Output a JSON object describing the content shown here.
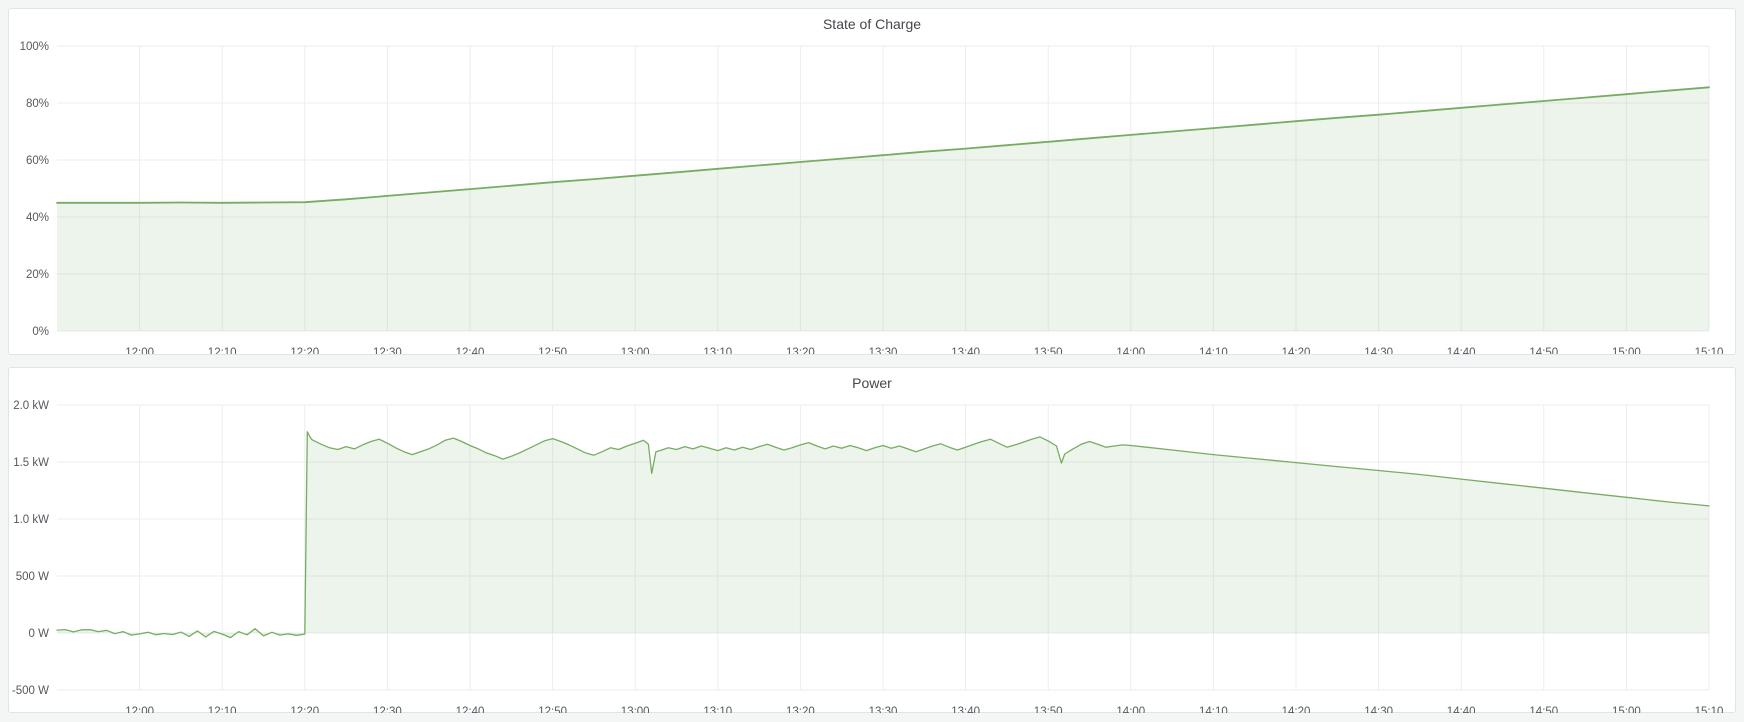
{
  "page": {
    "background_color": "#f4f5f5",
    "panel_background": "#ffffff",
    "panel_border_color": "#e0e3e7",
    "title_color": "#44474d",
    "axis_text_color": "#55585e",
    "grid_color": "#ebedf0"
  },
  "chart_data": [
    {
      "type": "area",
      "title": "State of Charge",
      "line_color": "#76ad62",
      "fill_color": "#76ad62",
      "fill_opacity": 0.13,
      "x_range": [
        0,
        200
      ],
      "y_range": [
        0,
        100
      ],
      "grid": true,
      "legend": "none",
      "y_ticks": [
        {
          "v": 0,
          "label": "0%"
        },
        {
          "v": 20,
          "label": "20%"
        },
        {
          "v": 40,
          "label": "40%"
        },
        {
          "v": 60,
          "label": "60%"
        },
        {
          "v": 80,
          "label": "80%"
        },
        {
          "v": 100,
          "label": "100%"
        }
      ],
      "x_ticks": [
        {
          "t": 10,
          "label": "12:00"
        },
        {
          "t": 20,
          "label": "12:10"
        },
        {
          "t": 30,
          "label": "12:20"
        },
        {
          "t": 40,
          "label": "12:30"
        },
        {
          "t": 50,
          "label": "12:40"
        },
        {
          "t": 60,
          "label": "12:50"
        },
        {
          "t": 70,
          "label": "13:00"
        },
        {
          "t": 80,
          "label": "13:10"
        },
        {
          "t": 90,
          "label": "13:20"
        },
        {
          "t": 100,
          "label": "13:30"
        },
        {
          "t": 110,
          "label": "13:40"
        },
        {
          "t": 120,
          "label": "13:50"
        },
        {
          "t": 130,
          "label": "14:00"
        },
        {
          "t": 140,
          "label": "14:10"
        },
        {
          "t": 150,
          "label": "14:20"
        },
        {
          "t": 160,
          "label": "14:30"
        },
        {
          "t": 170,
          "label": "14:40"
        },
        {
          "t": 180,
          "label": "14:50"
        },
        {
          "t": 190,
          "label": "15:00"
        },
        {
          "t": 200,
          "label": "15:10"
        }
      ],
      "points": [
        [
          0,
          45
        ],
        [
          5,
          45
        ],
        [
          10,
          45
        ],
        [
          15,
          45.1
        ],
        [
          20,
          45
        ],
        [
          25,
          45.1
        ],
        [
          30,
          45.2
        ],
        [
          35,
          46.2
        ],
        [
          40,
          47.4
        ],
        [
          45,
          48.6
        ],
        [
          50,
          49.8
        ],
        [
          55,
          51
        ],
        [
          60,
          52.2
        ],
        [
          65,
          53.3
        ],
        [
          70,
          54.5
        ],
        [
          75,
          55.7
        ],
        [
          80,
          56.9
        ],
        [
          85,
          58.1
        ],
        [
          90,
          59.3
        ],
        [
          95,
          60.5
        ],
        [
          100,
          61.7
        ],
        [
          105,
          62.9
        ],
        [
          110,
          64
        ],
        [
          115,
          65.2
        ],
        [
          120,
          66.4
        ],
        [
          125,
          67.6
        ],
        [
          130,
          68.8
        ],
        [
          135,
          70
        ],
        [
          140,
          71.2
        ],
        [
          145,
          72.4
        ],
        [
          150,
          73.6
        ],
        [
          155,
          74.8
        ],
        [
          160,
          75.9
        ],
        [
          165,
          77.1
        ],
        [
          170,
          78.3
        ],
        [
          175,
          79.5
        ],
        [
          180,
          80.7
        ],
        [
          185,
          81.9
        ],
        [
          190,
          83.1
        ],
        [
          195,
          84.3
        ],
        [
          200,
          85.5
        ]
      ]
    },
    {
      "type": "area",
      "title": "Power",
      "line_color": "#76ad62",
      "fill_color": "#76ad62",
      "fill_opacity": 0.13,
      "x_range": [
        0,
        200
      ],
      "y_range": [
        -500,
        2000
      ],
      "grid": true,
      "legend": "none",
      "y_ticks": [
        {
          "v": -500,
          "label": "-500 W"
        },
        {
          "v": 0,
          "label": "0 W"
        },
        {
          "v": 500,
          "label": "500 W"
        },
        {
          "v": 1000,
          "label": "1.0 kW"
        },
        {
          "v": 1500,
          "label": "1.5 kW"
        },
        {
          "v": 2000,
          "label": "2.0 kW"
        }
      ],
      "x_ticks": [
        {
          "t": 10,
          "label": "12:00"
        },
        {
          "t": 20,
          "label": "12:10"
        },
        {
          "t": 30,
          "label": "12:20"
        },
        {
          "t": 40,
          "label": "12:30"
        },
        {
          "t": 50,
          "label": "12:40"
        },
        {
          "t": 60,
          "label": "12:50"
        },
        {
          "t": 70,
          "label": "13:00"
        },
        {
          "t": 80,
          "label": "13:10"
        },
        {
          "t": 90,
          "label": "13:20"
        },
        {
          "t": 100,
          "label": "13:30"
        },
        {
          "t": 110,
          "label": "13:40"
        },
        {
          "t": 120,
          "label": "13:50"
        },
        {
          "t": 130,
          "label": "14:00"
        },
        {
          "t": 140,
          "label": "14:10"
        },
        {
          "t": 150,
          "label": "14:20"
        },
        {
          "t": 160,
          "label": "14:30"
        },
        {
          "t": 170,
          "label": "14:40"
        },
        {
          "t": 180,
          "label": "14:50"
        },
        {
          "t": 190,
          "label": "15:00"
        },
        {
          "t": 200,
          "label": "15:10"
        }
      ],
      "points": [
        [
          0,
          25
        ],
        [
          1,
          30
        ],
        [
          2,
          10
        ],
        [
          3,
          28
        ],
        [
          4,
          30
        ],
        [
          5,
          12
        ],
        [
          6,
          24
        ],
        [
          7,
          -5
        ],
        [
          8,
          12
        ],
        [
          9,
          -18
        ],
        [
          10,
          -8
        ],
        [
          11,
          6
        ],
        [
          12,
          -15
        ],
        [
          13,
          -4
        ],
        [
          14,
          -14
        ],
        [
          15,
          8
        ],
        [
          16,
          -30
        ],
        [
          17,
          18
        ],
        [
          18,
          -35
        ],
        [
          19,
          14
        ],
        [
          20,
          -10
        ],
        [
          21,
          -40
        ],
        [
          22,
          12
        ],
        [
          23,
          -16
        ],
        [
          24,
          38
        ],
        [
          25,
          -25
        ],
        [
          26,
          6
        ],
        [
          27,
          -18
        ],
        [
          28,
          -8
        ],
        [
          29,
          -20
        ],
        [
          30,
          -10
        ],
        [
          30.3,
          1765
        ],
        [
          30.8,
          1700
        ],
        [
          31,
          1690
        ],
        [
          32,
          1655
        ],
        [
          33,
          1625
        ],
        [
          34,
          1610
        ],
        [
          35,
          1635
        ],
        [
          36,
          1615
        ],
        [
          37,
          1650
        ],
        [
          38,
          1680
        ],
        [
          39,
          1700
        ],
        [
          40,
          1665
        ],
        [
          41,
          1625
        ],
        [
          42,
          1590
        ],
        [
          43,
          1565
        ],
        [
          44,
          1590
        ],
        [
          45,
          1615
        ],
        [
          46,
          1650
        ],
        [
          47,
          1690
        ],
        [
          48,
          1710
        ],
        [
          49,
          1680
        ],
        [
          50,
          1645
        ],
        [
          51,
          1615
        ],
        [
          52,
          1580
        ],
        [
          53,
          1555
        ],
        [
          54,
          1525
        ],
        [
          55,
          1550
        ],
        [
          56,
          1580
        ],
        [
          57,
          1615
        ],
        [
          58,
          1650
        ],
        [
          59,
          1685
        ],
        [
          60,
          1705
        ],
        [
          61,
          1680
        ],
        [
          62,
          1650
        ],
        [
          63,
          1615
        ],
        [
          64,
          1580
        ],
        [
          65,
          1560
        ],
        [
          66,
          1590
        ],
        [
          67,
          1625
        ],
        [
          68,
          1610
        ],
        [
          69,
          1640
        ],
        [
          70,
          1665
        ],
        [
          71,
          1690
        ],
        [
          71.6,
          1655
        ],
        [
          72,
          1400
        ],
        [
          72.5,
          1590
        ],
        [
          73,
          1600
        ],
        [
          74,
          1625
        ],
        [
          75,
          1610
        ],
        [
          76,
          1635
        ],
        [
          77,
          1615
        ],
        [
          78,
          1640
        ],
        [
          79,
          1620
        ],
        [
          80,
          1600
        ],
        [
          81,
          1625
        ],
        [
          82,
          1605
        ],
        [
          83,
          1630
        ],
        [
          84,
          1610
        ],
        [
          85,
          1635
        ],
        [
          86,
          1655
        ],
        [
          87,
          1630
        ],
        [
          88,
          1605
        ],
        [
          89,
          1625
        ],
        [
          90,
          1650
        ],
        [
          91,
          1670
        ],
        [
          92,
          1640
        ],
        [
          93,
          1615
        ],
        [
          94,
          1640
        ],
        [
          95,
          1620
        ],
        [
          96,
          1645
        ],
        [
          97,
          1625
        ],
        [
          98,
          1600
        ],
        [
          99,
          1625
        ],
        [
          100,
          1645
        ],
        [
          101,
          1620
        ],
        [
          102,
          1640
        ],
        [
          103,
          1615
        ],
        [
          104,
          1590
        ],
        [
          105,
          1615
        ],
        [
          106,
          1640
        ],
        [
          107,
          1660
        ],
        [
          108,
          1630
        ],
        [
          109,
          1605
        ],
        [
          110,
          1630
        ],
        [
          111,
          1655
        ],
        [
          112,
          1680
        ],
        [
          113,
          1700
        ],
        [
          114,
          1665
        ],
        [
          115,
          1630
        ],
        [
          116,
          1650
        ],
        [
          117,
          1675
        ],
        [
          118,
          1700
        ],
        [
          119,
          1720
        ],
        [
          120,
          1685
        ],
        [
          121,
          1640
        ],
        [
          121.6,
          1490
        ],
        [
          122,
          1570
        ],
        [
          123,
          1615
        ],
        [
          124,
          1655
        ],
        [
          125,
          1680
        ],
        [
          126,
          1655
        ],
        [
          127,
          1630
        ],
        [
          128,
          1640
        ],
        [
          129,
          1650
        ],
        [
          130,
          1645
        ],
        [
          135,
          1605
        ],
        [
          140,
          1565
        ],
        [
          145,
          1530
        ],
        [
          150,
          1495
        ],
        [
          155,
          1460
        ],
        [
          160,
          1425
        ],
        [
          165,
          1390
        ],
        [
          170,
          1350
        ],
        [
          175,
          1310
        ],
        [
          180,
          1270
        ],
        [
          185,
          1230
        ],
        [
          190,
          1190
        ],
        [
          195,
          1150
        ],
        [
          200,
          1115
        ]
      ]
    }
  ]
}
